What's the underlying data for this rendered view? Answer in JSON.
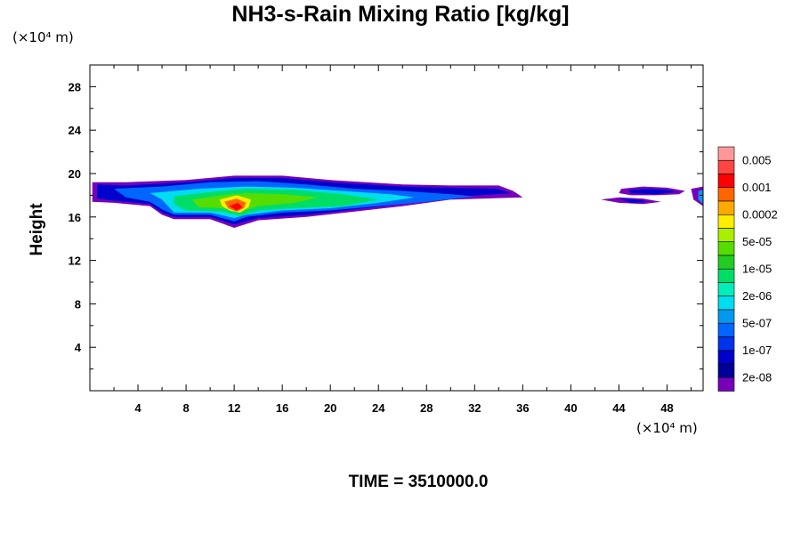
{
  "chart_data": {
    "type": "heatmap",
    "title": "NH3-s-Rain Mixing Ratio [kg/kg]",
    "ylabel": "Height",
    "xlabel": "",
    "x_unit": "(×10⁴ m)",
    "y_unit": "(×10⁴ m)",
    "xlim": [
      0,
      51
    ],
    "ylim": [
      0,
      30
    ],
    "x_ticks": [
      4,
      8,
      12,
      16,
      20,
      24,
      28,
      32,
      36,
      40,
      44,
      48
    ],
    "y_ticks": [
      4,
      8,
      12,
      16,
      20,
      24,
      28
    ],
    "colorbar": {
      "labels": [
        "0.005",
        "0.001",
        "0.0002",
        "5e-05",
        "1e-05",
        "2e-06",
        "5e-07",
        "1e-07",
        "2e-08"
      ],
      "colors": [
        "#ff9999",
        "#ff4444",
        "#ff0000",
        "#ff6600",
        "#ffaa00",
        "#ffee00",
        "#aaee00",
        "#55dd00",
        "#22cc22",
        "#00dd66",
        "#00eebb",
        "#00ddee",
        "#0099ee",
        "#0066ff",
        "#0033ee",
        "#0000cc",
        "#000099",
        "#7700bb"
      ]
    },
    "contours": [
      {
        "level": "2e-08",
        "color": "#7700bb",
        "points": [
          [
            0.2,
            19.2
          ],
          [
            3,
            19.2
          ],
          [
            8,
            19.4
          ],
          [
            12,
            19.8
          ],
          [
            16,
            19.8
          ],
          [
            20,
            19.4
          ],
          [
            26,
            19
          ],
          [
            30,
            18.9
          ],
          [
            34,
            18.9
          ],
          [
            35.2,
            18.4
          ],
          [
            36,
            17.8
          ],
          [
            30,
            17.6
          ],
          [
            26,
            17.0
          ],
          [
            22,
            16.5
          ],
          [
            18,
            16.0
          ],
          [
            14,
            15.7
          ],
          [
            12,
            15.0
          ],
          [
            10,
            15.8
          ],
          [
            7,
            15.8
          ],
          [
            6,
            16.2
          ],
          [
            5,
            17
          ],
          [
            2,
            17.3
          ],
          [
            0.2,
            17.4
          ]
        ]
      },
      {
        "level": "1e-07",
        "color": "#0000cc",
        "points": [
          [
            0.6,
            19.0
          ],
          [
            3,
            18.9
          ],
          [
            8,
            19.2
          ],
          [
            12,
            19.6
          ],
          [
            16,
            19.6
          ],
          [
            20,
            19.2
          ],
          [
            26,
            18.8
          ],
          [
            30,
            18.7
          ],
          [
            34,
            18.6
          ],
          [
            35,
            18.2
          ],
          [
            30,
            17.8
          ],
          [
            26,
            17.2
          ],
          [
            22,
            16.7
          ],
          [
            18,
            16.2
          ],
          [
            14,
            15.9
          ],
          [
            12,
            15.3
          ],
          [
            10,
            16.0
          ],
          [
            7,
            16.0
          ],
          [
            6,
            16.4
          ],
          [
            5,
            17.2
          ],
          [
            2,
            17.5
          ],
          [
            0.6,
            17.7
          ]
        ]
      },
      {
        "level": "5e-07",
        "color": "#0066ff",
        "points": [
          [
            2,
            18.6
          ],
          [
            6,
            18.8
          ],
          [
            10,
            19.2
          ],
          [
            14,
            19.3
          ],
          [
            18,
            19.0
          ],
          [
            22,
            18.6
          ],
          [
            26,
            18.4
          ],
          [
            30,
            18.1
          ],
          [
            32,
            17.9
          ],
          [
            28,
            17.4
          ],
          [
            24,
            17.0
          ],
          [
            20,
            16.6
          ],
          [
            16,
            16.4
          ],
          [
            13,
            16.0
          ],
          [
            12,
            15.6
          ],
          [
            10,
            16.2
          ],
          [
            7,
            16.2
          ],
          [
            6,
            16.7
          ],
          [
            5,
            17.4
          ],
          [
            3,
            17.8
          ]
        ]
      },
      {
        "level": "2e-06",
        "color": "#00ddee",
        "points": [
          [
            5,
            18.2
          ],
          [
            9,
            18.6
          ],
          [
            13,
            18.8
          ],
          [
            17,
            18.7
          ],
          [
            21,
            18.4
          ],
          [
            25,
            18.1
          ],
          [
            27,
            17.8
          ],
          [
            24,
            17.3
          ],
          [
            20,
            16.8
          ],
          [
            16,
            16.6
          ],
          [
            13,
            16.2
          ],
          [
            12,
            15.9
          ],
          [
            10,
            16.4
          ],
          [
            7,
            16.4
          ],
          [
            6.5,
            17.0
          ],
          [
            6,
            17.6
          ]
        ]
      },
      {
        "level": "1e-05",
        "color": "#00dd66",
        "points": [
          [
            7,
            17.9
          ],
          [
            10,
            18.3
          ],
          [
            13,
            18.6
          ],
          [
            17,
            18.5
          ],
          [
            21,
            18.1
          ],
          [
            24,
            17.6
          ],
          [
            21,
            17.0
          ],
          [
            17,
            16.8
          ],
          [
            14,
            16.6
          ],
          [
            12.5,
            16.1
          ],
          [
            11,
            16.5
          ],
          [
            8,
            16.6
          ],
          [
            7,
            17.2
          ]
        ]
      },
      {
        "level": "1e-05b",
        "color": "#55dd00",
        "points": [
          [
            8.5,
            17.6
          ],
          [
            11,
            18.0
          ],
          [
            13,
            18.2
          ],
          [
            16,
            18.1
          ],
          [
            19,
            17.8
          ],
          [
            17,
            17.3
          ],
          [
            14,
            17.0
          ],
          [
            12.5,
            16.5
          ],
          [
            11,
            16.8
          ],
          [
            9,
            16.9
          ]
        ]
      },
      {
        "level": "5e-05",
        "color": "#ffee00",
        "points": [
          [
            10.8,
            17.6
          ],
          [
            12.2,
            18.0
          ],
          [
            13.4,
            17.6
          ],
          [
            13.2,
            16.9
          ],
          [
            12.5,
            16.4
          ],
          [
            11.6,
            16.6
          ],
          [
            11.0,
            17.0
          ]
        ]
      },
      {
        "level": "0.0002",
        "color": "#ff6600",
        "points": [
          [
            11.2,
            17.4
          ],
          [
            12.2,
            17.7
          ],
          [
            13.0,
            17.3
          ],
          [
            12.8,
            16.8
          ],
          [
            12.2,
            16.5
          ],
          [
            11.5,
            16.8
          ]
        ]
      },
      {
        "level": "0.001",
        "color": "#ff0000",
        "points": [
          [
            11.6,
            17.0
          ],
          [
            12.3,
            17.3
          ],
          [
            12.7,
            16.9
          ],
          [
            12.2,
            16.6
          ]
        ]
      },
      {
        "level": "2e-08",
        "color": "#7700bb",
        "points": [
          [
            44.2,
            18.6
          ],
          [
            46,
            18.8
          ],
          [
            48,
            18.7
          ],
          [
            49.5,
            18.4
          ],
          [
            49,
            18.1
          ],
          [
            47,
            18.0
          ],
          [
            45,
            18.0
          ],
          [
            44,
            18.2
          ]
        ]
      },
      {
        "level": "1e-07",
        "color": "#0000cc",
        "points": [
          [
            44.8,
            18.5
          ],
          [
            46.5,
            18.6
          ],
          [
            48,
            18.5
          ],
          [
            48.8,
            18.3
          ],
          [
            47,
            18.1
          ],
          [
            45,
            18.2
          ]
        ]
      },
      {
        "level": "2e-08",
        "color": "#7700bb",
        "points": [
          [
            42.5,
            17.6
          ],
          [
            44,
            17.8
          ],
          [
            46,
            17.7
          ],
          [
            47.5,
            17.4
          ],
          [
            46,
            17.2
          ],
          [
            44,
            17.3
          ]
        ]
      },
      {
        "level": "1e-07",
        "color": "#0000cc",
        "points": [
          [
            44,
            17.7
          ],
          [
            45.5,
            17.6
          ],
          [
            46.5,
            17.4
          ],
          [
            45,
            17.3
          ]
        ]
      },
      {
        "level": "2e-08",
        "color": "#7700bb",
        "points": [
          [
            50,
            18.6
          ],
          [
            51,
            18.8
          ],
          [
            51,
            17.0
          ],
          [
            50.2,
            17.6
          ]
        ]
      },
      {
        "level": "5e-07",
        "color": "#0099ee",
        "points": [
          [
            50.6,
            18.4
          ],
          [
            51,
            18.5
          ],
          [
            51,
            17.2
          ],
          [
            50.6,
            17.6
          ]
        ]
      }
    ]
  },
  "footer": "TIME = 3510000.0"
}
